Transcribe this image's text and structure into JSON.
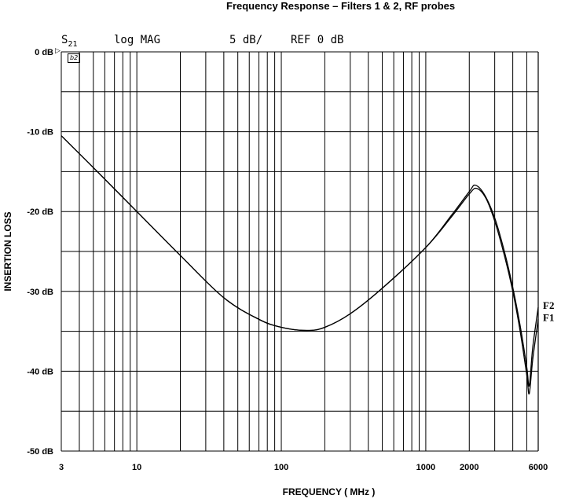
{
  "chart_data": {
    "type": "line",
    "title": "Frequency Response – Filters 1 & 2, RF probes",
    "header": {
      "param": "S",
      "param_sub": "21",
      "format": "log MAG",
      "scale": "5 dB/",
      "reference": "REF  0 dB"
    },
    "marker_label": "b2",
    "xlabel": "FREQUENCY ( MHz )",
    "ylabel": "INSERTION LOSS",
    "xscale": "log",
    "xlim": [
      3,
      6000
    ],
    "ylim": [
      -50,
      0
    ],
    "x_tick_labels": [
      {
        "value": 3,
        "label": "3"
      },
      {
        "value": 10,
        "label": "10"
      },
      {
        "value": 100,
        "label": "100"
      },
      {
        "value": 1000,
        "label": "1000"
      },
      {
        "value": 2000,
        "label": "2000"
      },
      {
        "value": 6000,
        "label": "6000"
      }
    ],
    "y_tick_labels": [
      {
        "value": 0,
        "label": "0 dB"
      },
      {
        "value": -10,
        "label": "-10 dB"
      },
      {
        "value": -20,
        "label": "-20 dB"
      },
      {
        "value": -30,
        "label": "-30 dB"
      },
      {
        "value": -40,
        "label": "-40 dB"
      },
      {
        "value": -50,
        "label": "-50 dB"
      }
    ],
    "y_gridlines": [
      0,
      -5,
      -10,
      -15,
      -20,
      -25,
      -30,
      -35,
      -40,
      -45,
      -50
    ],
    "grid": true,
    "series": [
      {
        "name": "F1",
        "x": [
          3,
          5,
          10,
          20,
          40,
          70,
          100,
          150,
          200,
          300,
          500,
          1000,
          1500,
          2000,
          2250,
          2600,
          3000,
          3500,
          4000,
          4500,
          5000,
          5200,
          5500,
          6000
        ],
        "y": [
          -10.5,
          -14.5,
          -20.0,
          -25.5,
          -30.8,
          -33.5,
          -34.5,
          -34.9,
          -34.5,
          -32.8,
          -29.6,
          -24.5,
          -20.7,
          -17.8,
          -17.1,
          -18.3,
          -21.2,
          -25.5,
          -30.0,
          -35.0,
          -40.5,
          -42.8,
          -38.5,
          -33.5
        ]
      },
      {
        "name": "F2",
        "x": [
          3,
          5,
          10,
          20,
          40,
          70,
          100,
          150,
          200,
          300,
          500,
          1000,
          1500,
          2000,
          2200,
          2550,
          3000,
          3500,
          4000,
          4500,
          5000,
          5200,
          5500,
          6000
        ],
        "y": [
          -10.5,
          -14.5,
          -20.0,
          -25.5,
          -30.8,
          -33.5,
          -34.5,
          -34.9,
          -34.5,
          -32.8,
          -29.6,
          -24.5,
          -20.5,
          -17.5,
          -16.7,
          -17.9,
          -20.8,
          -25.0,
          -29.5,
          -34.3,
          -39.5,
          -41.8,
          -37.0,
          -32.0
        ]
      }
    ]
  }
}
